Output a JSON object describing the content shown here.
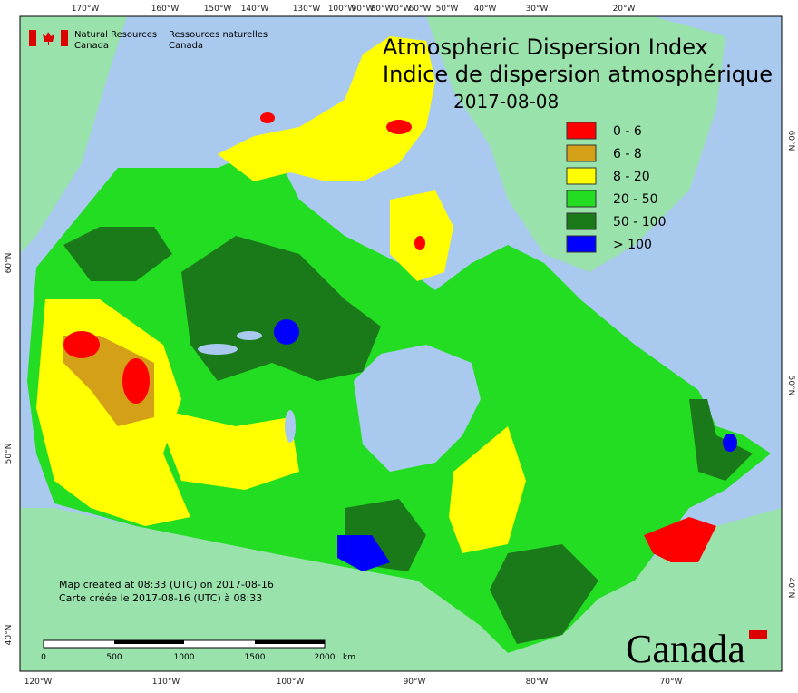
{
  "header": {
    "org_en": [
      "Natural Resources",
      "Canada"
    ],
    "org_fr": [
      "Ressources naturelles",
      "Canada"
    ]
  },
  "title": [
    "Atmospheric Dispersion Index",
    "Indice de dispersion atmosphérique"
  ],
  "date": "2017-08-08",
  "legend": [
    {
      "label": "0 - 6",
      "color": "#ff0000"
    },
    {
      "label": "6 - 8",
      "color": "#d4a017"
    },
    {
      "label": "8 - 20",
      "color": "#ffff00"
    },
    {
      "label": "20 - 50",
      "color": "#22dd22"
    },
    {
      "label": "50 - 100",
      "color": "#1a7a1a"
    },
    {
      "label": "> 100",
      "color": "#0000ff"
    }
  ],
  "graticule": {
    "top": [
      "170°W",
      "160°W",
      "150°W",
      "140°W",
      "130°W",
      "100°W",
      "90°W",
      "80°W",
      "70°W",
      "60°W",
      "50°W",
      "40°W",
      "30°W",
      "20°W"
    ],
    "bottom": [
      "120°W",
      "110°W",
      "100°W",
      "90°W",
      "80°W",
      "70°W"
    ],
    "right": [
      "60°N",
      "50°N",
      "40°N"
    ],
    "left": [
      "60°N",
      "50°N",
      "40°N"
    ]
  },
  "footnote": [
    "Map created at 08:33 (UTC) on 2017-08-16",
    "Carte créée le 2017-08-16 (UTC) à 08:33"
  ],
  "scale": {
    "labels": [
      "0",
      "500",
      "1000",
      "1500",
      "2000"
    ],
    "unit": "km"
  },
  "wordmark": "Canada"
}
